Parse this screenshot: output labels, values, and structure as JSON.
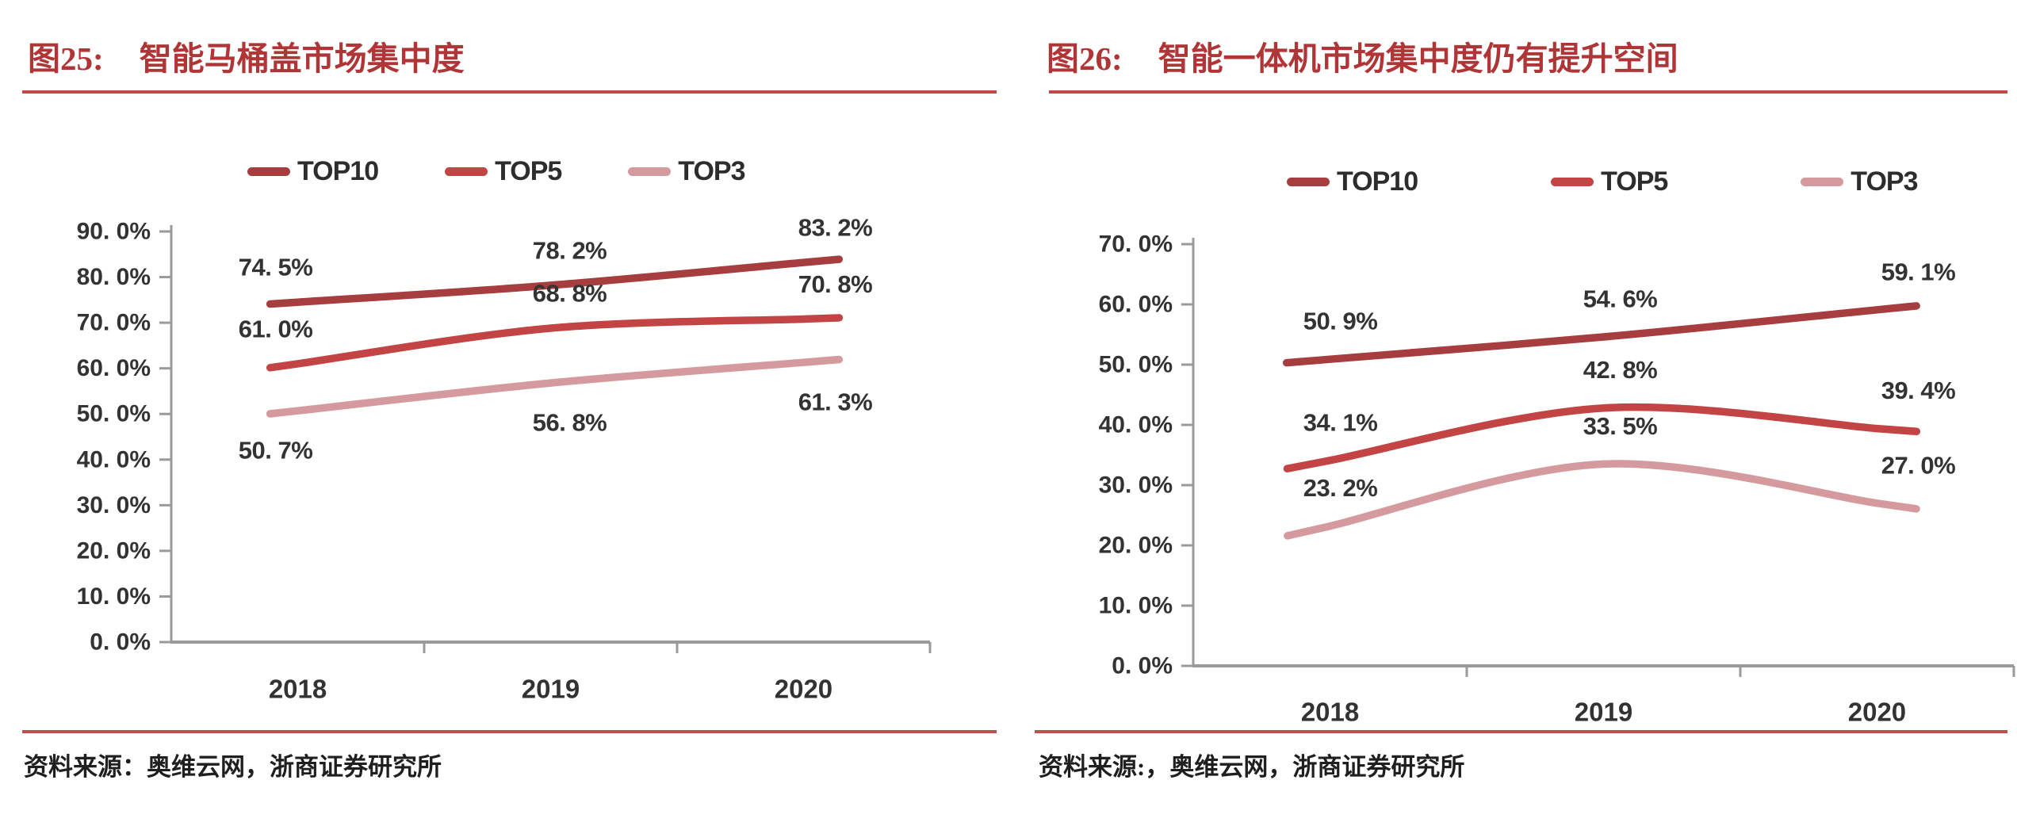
{
  "page": {
    "background": "#ffffff"
  },
  "colors": {
    "title_red": "#B03537",
    "rule_red": "#BE4946",
    "footer_rule_red": "#C0504D",
    "axis_gray": "#9A9A9A",
    "label_dark": "#333333",
    "top10": "#A63D3F",
    "top5": "#C24444",
    "top3": "#D59A9E"
  },
  "figures": [
    {
      "fig_label": "图25:",
      "title": "智能马桶盖市场集中度",
      "source": "资料来源：奥维云网，浙商证券研究所",
      "chart_data": {
        "type": "line",
        "categories": [
          "2018",
          "2019",
          "2020"
        ],
        "series": [
          {
            "name": "TOP10",
            "values": [
              74.5,
              78.2,
              83.2
            ],
            "point_labels": [
              "74. 5%",
              "78. 2%",
              "83. 2%"
            ],
            "color": "#A63D3F",
            "label_side": "above"
          },
          {
            "name": "TOP5",
            "values": [
              61.0,
              68.8,
              70.8
            ],
            "point_labels": [
              "61. 0%",
              "68. 8%",
              "70. 8%"
            ],
            "color": "#C24444",
            "label_side": "above"
          },
          {
            "name": "TOP3",
            "values": [
              50.7,
              56.8,
              61.3
            ],
            "point_labels": [
              "50. 7%",
              "56. 8%",
              "61. 3%"
            ],
            "color": "#D59A9E",
            "label_side": "below"
          }
        ],
        "ylim": [
          0,
          90
        ],
        "ytick_step": 10,
        "ytick_suffix": ". 0%",
        "grid": false,
        "legend_position": "top"
      }
    },
    {
      "fig_label": "图26:",
      "title": "智能一体机市场集中度仍有提升空间",
      "source": "资料来源:，奥维云网，浙商证券研究所",
      "chart_data": {
        "type": "line",
        "categories": [
          "2018",
          "2019",
          "2020"
        ],
        "series": [
          {
            "name": "TOP10",
            "values": [
              50.9,
              54.6,
              59.1
            ],
            "point_labels": [
              "50. 9%",
              "54. 6%",
              "59. 1%"
            ],
            "color": "#A63D3F",
            "label_side": "above"
          },
          {
            "name": "TOP5",
            "values": [
              34.1,
              42.8,
              39.4
            ],
            "point_labels": [
              "34. 1%",
              "42. 8%",
              "39. 4%"
            ],
            "color": "#C24444",
            "label_side": "above"
          },
          {
            "name": "TOP3",
            "values": [
              23.2,
              33.5,
              27.0
            ],
            "point_labels": [
              "23. 2%",
              "33. 5%",
              "27. 0%"
            ],
            "color": "#D59A9E",
            "label_side": "above"
          }
        ],
        "ylim": [
          0,
          70
        ],
        "ytick_step": 10,
        "ytick_suffix": ". 0%",
        "grid": false,
        "legend_position": "top"
      }
    }
  ]
}
